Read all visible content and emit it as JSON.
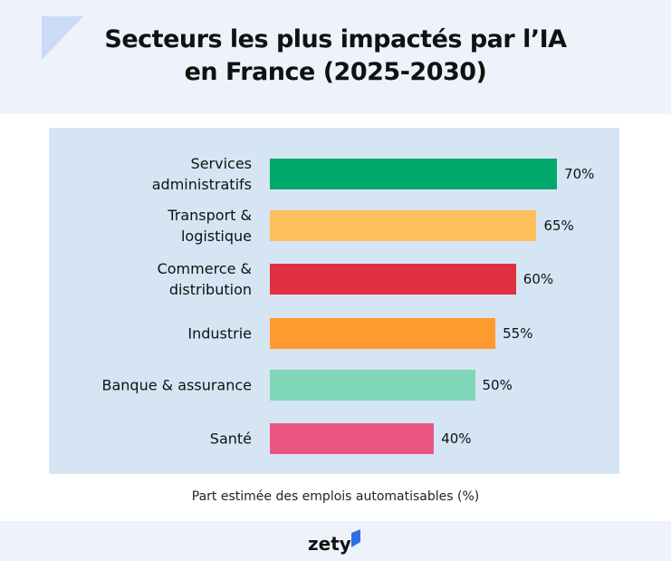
{
  "chart_data": {
    "type": "hbar",
    "title": "Secteurs les plus impactés par l’IA\nen France (2025-2030)",
    "categories": [
      "Services\nadministratifs",
      "Transport &\nlogistique",
      "Commerce &\ndistribution",
      "Industrie",
      "Banque & assurance",
      "Santé"
    ],
    "values": [
      70,
      65,
      60,
      55,
      50,
      40
    ],
    "value_labels": [
      "70%",
      "65%",
      "60%",
      "55%",
      "50%",
      "40%"
    ],
    "colors": [
      "#00a86b",
      "#ffc05e",
      "#e0303f",
      "#ff9a2e",
      "#7fd6b8",
      "#ea5683"
    ],
    "xlim": [
      0,
      100
    ],
    "xlabel": "Part estimée des emplois automatisables (%)"
  },
  "brand": "zety"
}
